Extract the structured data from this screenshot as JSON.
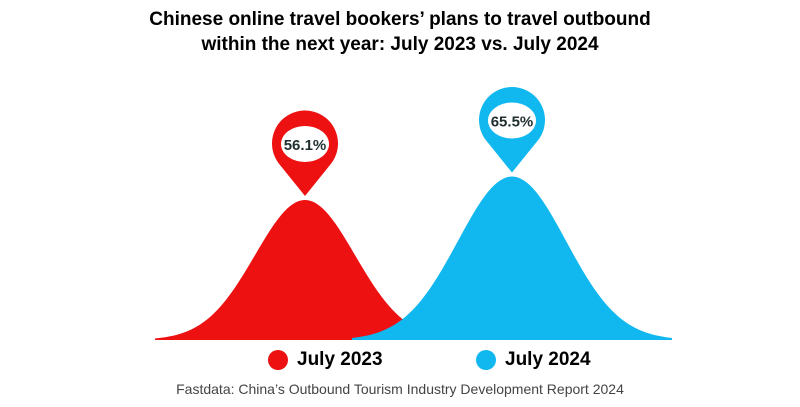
{
  "title_lines": [
    "Chinese online travel bookers’ plans to travel outbound",
    "within the next year: July 2023 vs. July 2024"
  ],
  "chart_data": {
    "type": "area",
    "title": "Chinese online travel bookers’ plans to travel outbound within the next year: July 2023 vs. July 2024",
    "series": [
      {
        "name": "July 2023",
        "value": 56.1,
        "label": "56.1%",
        "color": "#ee1111"
      },
      {
        "name": "July 2024",
        "value": 65.5,
        "label": "65.5%",
        "color": "#10b8ef"
      }
    ],
    "legend_position": "bottom",
    "grid": false
  },
  "legend": [
    {
      "label": "July 2023",
      "color": "#ee1111"
    },
    {
      "label": "July 2024",
      "color": "#10b8ef"
    }
  ],
  "source": "Fastdata: China’s Outbound Tourism Industry Development Report 2024"
}
